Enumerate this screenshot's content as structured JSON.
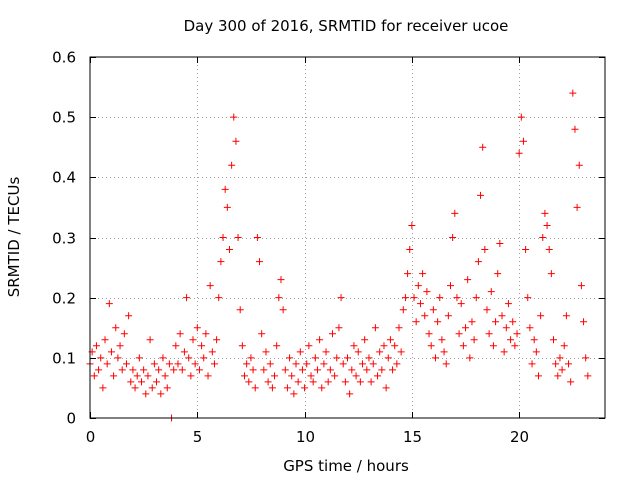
{
  "chart_data": {
    "type": "scatter",
    "title": "Day 300 of 2016, SRMTID for receiver ucoe",
    "xlabel": "GPS time / hours",
    "ylabel": "SRMTID / TECUs",
    "xlim": [
      0,
      24
    ],
    "ylim": [
      0,
      0.6
    ],
    "grid": true,
    "marker": "+",
    "series_color": "#ff0000",
    "x_ticks": [
      {
        "value": 0,
        "label": "0"
      },
      {
        "value": 5,
        "label": "5"
      },
      {
        "value": 10,
        "label": "10"
      },
      {
        "value": 15,
        "label": "15"
      },
      {
        "value": 20,
        "label": "20"
      }
    ],
    "y_ticks": [
      {
        "value": 0,
        "label": "0"
      },
      {
        "value": 0.1,
        "label": "0.1"
      },
      {
        "value": 0.2,
        "label": "0.2"
      },
      {
        "value": 0.3,
        "label": "0.3"
      },
      {
        "value": 0.4,
        "label": "0.4"
      },
      {
        "value": 0.5,
        "label": "0.5"
      },
      {
        "value": 0.6,
        "label": "0.6"
      }
    ],
    "series": [
      {
        "name": "SRMTID",
        "points": [
          [
            0.0,
            0.09
          ],
          [
            0.1,
            0.11
          ],
          [
            0.2,
            0.07
          ],
          [
            0.3,
            0.12
          ],
          [
            0.4,
            0.08
          ],
          [
            0.5,
            0.1
          ],
          [
            0.6,
            0.05
          ],
          [
            0.7,
            0.13
          ],
          [
            0.8,
            0.09
          ],
          [
            0.9,
            0.19
          ],
          [
            1.0,
            0.11
          ],
          [
            1.1,
            0.07
          ],
          [
            1.2,
            0.15
          ],
          [
            1.3,
            0.1
          ],
          [
            1.4,
            0.12
          ],
          [
            1.5,
            0.08
          ],
          [
            1.6,
            0.14
          ],
          [
            1.7,
            0.09
          ],
          [
            1.8,
            0.17
          ],
          [
            1.9,
            0.06
          ],
          [
            2.0,
            0.08
          ],
          [
            2.1,
            0.05
          ],
          [
            2.2,
            0.07
          ],
          [
            2.3,
            0.1
          ],
          [
            2.4,
            0.06
          ],
          [
            2.5,
            0.08
          ],
          [
            2.6,
            0.04
          ],
          [
            2.7,
            0.07
          ],
          [
            2.8,
            0.13
          ],
          [
            2.9,
            0.05
          ],
          [
            3.0,
            0.09
          ],
          [
            3.1,
            0.06
          ],
          [
            3.2,
            0.08
          ],
          [
            3.3,
            0.04
          ],
          [
            3.4,
            0.1
          ],
          [
            3.5,
            0.07
          ],
          [
            3.6,
            0.05
          ],
          [
            3.7,
            0.09
          ],
          [
            3.8,
            0.0
          ],
          [
            3.9,
            0.08
          ],
          [
            4.0,
            0.12
          ],
          [
            4.1,
            0.09
          ],
          [
            4.2,
            0.14
          ],
          [
            4.3,
            0.08
          ],
          [
            4.4,
            0.11
          ],
          [
            4.5,
            0.2
          ],
          [
            4.6,
            0.1
          ],
          [
            4.7,
            0.07
          ],
          [
            4.8,
            0.13
          ],
          [
            4.9,
            0.09
          ],
          [
            5.0,
            0.15
          ],
          [
            5.1,
            0.08
          ],
          [
            5.2,
            0.12
          ],
          [
            5.3,
            0.1
          ],
          [
            5.4,
            0.14
          ],
          [
            5.5,
            0.07
          ],
          [
            5.6,
            0.22
          ],
          [
            5.7,
            0.11
          ],
          [
            5.8,
            0.09
          ],
          [
            5.9,
            0.13
          ],
          [
            6.0,
            0.2
          ],
          [
            6.1,
            0.26
          ],
          [
            6.2,
            0.3
          ],
          [
            6.3,
            0.38
          ],
          [
            6.4,
            0.35
          ],
          [
            6.5,
            0.28
          ],
          [
            6.6,
            0.42
          ],
          [
            6.7,
            0.5
          ],
          [
            6.8,
            0.46
          ],
          [
            6.9,
            0.3
          ],
          [
            7.0,
            0.18
          ],
          [
            7.1,
            0.12
          ],
          [
            7.2,
            0.07
          ],
          [
            7.3,
            0.09
          ],
          [
            7.4,
            0.06
          ],
          [
            7.5,
            0.1
          ],
          [
            7.6,
            0.08
          ],
          [
            7.7,
            0.05
          ],
          [
            7.8,
            0.3
          ],
          [
            7.9,
            0.26
          ],
          [
            8.0,
            0.14
          ],
          [
            8.1,
            0.08
          ],
          [
            8.2,
            0.11
          ],
          [
            8.3,
            0.06
          ],
          [
            8.4,
            0.09
          ],
          [
            8.5,
            0.05
          ],
          [
            8.6,
            0.07
          ],
          [
            8.7,
            0.12
          ],
          [
            8.8,
            0.2
          ],
          [
            8.9,
            0.23
          ],
          [
            9.0,
            0.18
          ],
          [
            9.1,
            0.08
          ],
          [
            9.2,
            0.05
          ],
          [
            9.3,
            0.1
          ],
          [
            9.4,
            0.07
          ],
          [
            9.5,
            0.04
          ],
          [
            9.6,
            0.09
          ],
          [
            9.7,
            0.06
          ],
          [
            9.8,
            0.11
          ],
          [
            9.9,
            0.08
          ],
          [
            10.0,
            0.05
          ],
          [
            10.1,
            0.09
          ],
          [
            10.2,
            0.12
          ],
          [
            10.3,
            0.07
          ],
          [
            10.4,
            0.06
          ],
          [
            10.5,
            0.1
          ],
          [
            10.6,
            0.08
          ],
          [
            10.7,
            0.13
          ],
          [
            10.8,
            0.05
          ],
          [
            10.9,
            0.09
          ],
          [
            11.0,
            0.11
          ],
          [
            11.1,
            0.06
          ],
          [
            11.2,
            0.08
          ],
          [
            11.3,
            0.14
          ],
          [
            11.4,
            0.07
          ],
          [
            11.5,
            0.1
          ],
          [
            11.6,
            0.15
          ],
          [
            11.7,
            0.2
          ],
          [
            11.8,
            0.09
          ],
          [
            11.9,
            0.06
          ],
          [
            12.0,
            0.1
          ],
          [
            12.1,
            0.04
          ],
          [
            12.2,
            0.08
          ],
          [
            12.3,
            0.12
          ],
          [
            12.4,
            0.07
          ],
          [
            12.5,
            0.11
          ],
          [
            12.6,
            0.06
          ],
          [
            12.7,
            0.09
          ],
          [
            12.8,
            0.13
          ],
          [
            12.9,
            0.08
          ],
          [
            13.0,
            0.1
          ],
          [
            13.1,
            0.06
          ],
          [
            13.2,
            0.09
          ],
          [
            13.3,
            0.15
          ],
          [
            13.4,
            0.07
          ],
          [
            13.5,
            0.11
          ],
          [
            13.6,
            0.08
          ],
          [
            13.7,
            0.12
          ],
          [
            13.8,
            0.05
          ],
          [
            13.9,
            0.1
          ],
          [
            14.0,
            0.13
          ],
          [
            14.1,
            0.08
          ],
          [
            14.2,
            0.12
          ],
          [
            14.3,
            0.09
          ],
          [
            14.4,
            0.15
          ],
          [
            14.5,
            0.11
          ],
          [
            14.6,
            0.18
          ],
          [
            14.7,
            0.2
          ],
          [
            14.8,
            0.24
          ],
          [
            14.9,
            0.28
          ],
          [
            15.0,
            0.32
          ],
          [
            15.1,
            0.2
          ],
          [
            15.2,
            0.16
          ],
          [
            15.3,
            0.22
          ],
          [
            15.4,
            0.19
          ],
          [
            15.5,
            0.24
          ],
          [
            15.6,
            0.17
          ],
          [
            15.7,
            0.21
          ],
          [
            15.8,
            0.14
          ],
          [
            15.9,
            0.12
          ],
          [
            16.0,
            0.18
          ],
          [
            16.1,
            0.1
          ],
          [
            16.2,
            0.16
          ],
          [
            16.3,
            0.2
          ],
          [
            16.4,
            0.13
          ],
          [
            16.5,
            0.11
          ],
          [
            16.6,
            0.09
          ],
          [
            16.7,
            0.17
          ],
          [
            16.8,
            0.22
          ],
          [
            16.9,
            0.3
          ],
          [
            17.0,
            0.34
          ],
          [
            17.1,
            0.2
          ],
          [
            17.2,
            0.14
          ],
          [
            17.3,
            0.19
          ],
          [
            17.4,
            0.12
          ],
          [
            17.5,
            0.15
          ],
          [
            17.6,
            0.23
          ],
          [
            17.7,
            0.1
          ],
          [
            17.8,
            0.16
          ],
          [
            17.9,
            0.13
          ],
          [
            18.0,
            0.2
          ],
          [
            18.1,
            0.26
          ],
          [
            18.2,
            0.37
          ],
          [
            18.3,
            0.45
          ],
          [
            18.4,
            0.28
          ],
          [
            18.5,
            0.18
          ],
          [
            18.6,
            0.14
          ],
          [
            18.7,
            0.21
          ],
          [
            18.8,
            0.12
          ],
          [
            18.9,
            0.16
          ],
          [
            19.0,
            0.24
          ],
          [
            19.1,
            0.29
          ],
          [
            19.2,
            0.17
          ],
          [
            19.3,
            0.11
          ],
          [
            19.4,
            0.15
          ],
          [
            19.5,
            0.19
          ],
          [
            19.6,
            0.13
          ],
          [
            19.7,
            0.16
          ],
          [
            19.8,
            0.12
          ],
          [
            19.9,
            0.14
          ],
          [
            20.0,
            0.44
          ],
          [
            20.1,
            0.5
          ],
          [
            20.2,
            0.46
          ],
          [
            20.3,
            0.28
          ],
          [
            20.4,
            0.2
          ],
          [
            20.5,
            0.15
          ],
          [
            20.6,
            0.09
          ],
          [
            20.7,
            0.13
          ],
          [
            20.8,
            0.11
          ],
          [
            20.9,
            0.07
          ],
          [
            21.0,
            0.17
          ],
          [
            21.1,
            0.3
          ],
          [
            21.2,
            0.34
          ],
          [
            21.3,
            0.32
          ],
          [
            21.4,
            0.28
          ],
          [
            21.5,
            0.24
          ],
          [
            21.6,
            0.13
          ],
          [
            21.7,
            0.09
          ],
          [
            21.8,
            0.07
          ],
          [
            21.9,
            0.1
          ],
          [
            22.0,
            0.08
          ],
          [
            22.1,
            0.12
          ],
          [
            22.2,
            0.17
          ],
          [
            22.3,
            0.09
          ],
          [
            22.4,
            0.06
          ],
          [
            22.5,
            0.54
          ],
          [
            22.6,
            0.48
          ],
          [
            22.7,
            0.35
          ],
          [
            22.8,
            0.42
          ],
          [
            22.9,
            0.22
          ],
          [
            23.0,
            0.16
          ],
          [
            23.1,
            0.1
          ],
          [
            23.2,
            0.07
          ]
        ]
      }
    ]
  }
}
